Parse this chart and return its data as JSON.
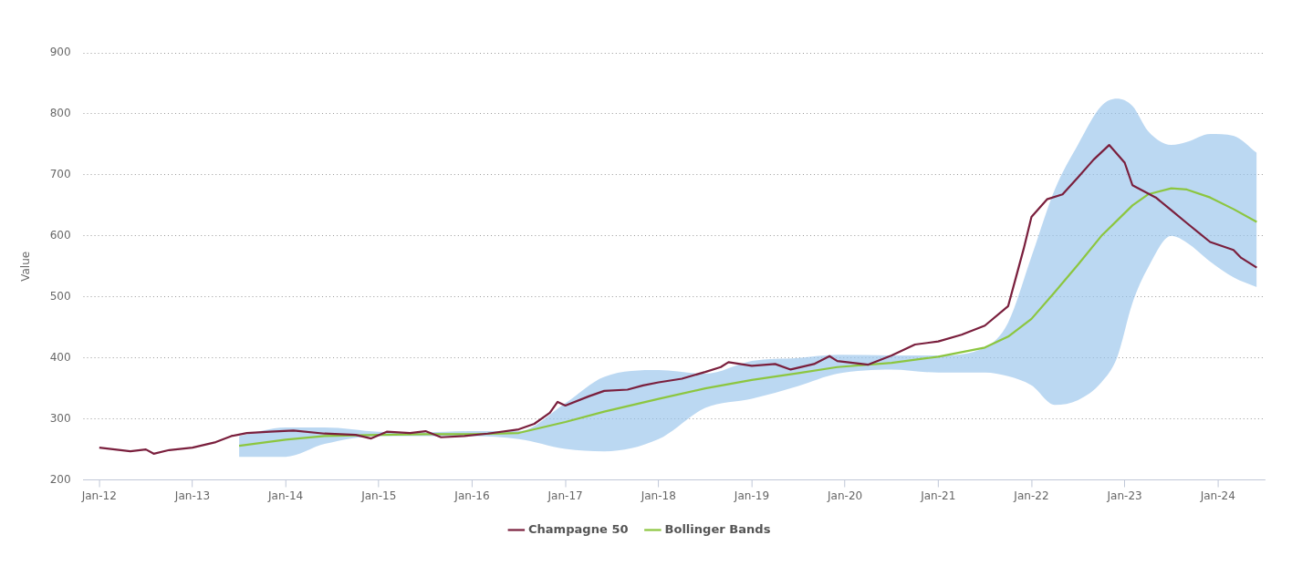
{
  "chart_data": {
    "type": "line",
    "ylabel": "Value",
    "xlim": [
      "2011-11",
      "2024-07"
    ],
    "xticks": [
      {
        "value": "2012-01",
        "label": "Jan-12"
      },
      {
        "value": "2013-01",
        "label": "Jan-13"
      },
      {
        "value": "2014-01",
        "label": "Jan-14"
      },
      {
        "value": "2015-01",
        "label": "Jan-15"
      },
      {
        "value": "2016-01",
        "label": "Jan-16"
      },
      {
        "value": "2017-01",
        "label": "Jan-17"
      },
      {
        "value": "2018-01",
        "label": "Jan-18"
      },
      {
        "value": "2019-01",
        "label": "Jan-19"
      },
      {
        "value": "2020-01",
        "label": "Jan-20"
      },
      {
        "value": "2021-01",
        "label": "Jan-21"
      },
      {
        "value": "2022-01",
        "label": "Jan-22"
      },
      {
        "value": "2023-01",
        "label": "Jan-23"
      },
      {
        "value": "2024-01",
        "label": "Jan-24"
      }
    ],
    "ylim": [
      200,
      900
    ],
    "yticks": [
      200,
      300,
      400,
      500,
      600,
      700,
      800,
      900
    ],
    "grid": "y",
    "legend": "bottom",
    "marker": "none",
    "line_style": "solid",
    "series": [
      {
        "name": "Champagne 50",
        "color": "#7a1f3d",
        "x": [
          "2012-01",
          "2012-03",
          "2012-05",
          "2012-07",
          "2012-08",
          "2012-10",
          "2013-01",
          "2013-04",
          "2013-06",
          "2013-08",
          "2013-11",
          "2014-02",
          "2014-06",
          "2014-10",
          "2014-12",
          "2015-02",
          "2015-05",
          "2015-07",
          "2015-09",
          "2015-12",
          "2016-03",
          "2016-07",
          "2016-09",
          "2016-11",
          "2016-12",
          "2017-01",
          "2017-04",
          "2017-06",
          "2017-09",
          "2017-11",
          "2018-01",
          "2018-04",
          "2018-07",
          "2018-09",
          "2018-10",
          "2019-01",
          "2019-04",
          "2019-06",
          "2019-09",
          "2019-11",
          "2019-12",
          "2020-04",
          "2020-07",
          "2020-10",
          "2021-01",
          "2021-04",
          "2021-07",
          "2021-10",
          "2021-11",
          "2021-12",
          "2022-01",
          "2022-03",
          "2022-05",
          "2022-07",
          "2022-09",
          "2022-11",
          "2023-01",
          "2023-02",
          "2023-05",
          "2023-07",
          "2023-09",
          "2023-12",
          "2024-03",
          "2024-04",
          "2024-06"
        ],
        "values": [
          253,
          250,
          247,
          250,
          243,
          249,
          253,
          262,
          272,
          277,
          279,
          281,
          276,
          274,
          268,
          279,
          277,
          280,
          270,
          272,
          276,
          283,
          292,
          310,
          328,
          322,
          337,
          346,
          348,
          355,
          360,
          366,
          377,
          385,
          393,
          387,
          390,
          381,
          390,
          403,
          395,
          389,
          404,
          422,
          427,
          438,
          453,
          485,
          532,
          579,
          631,
          660,
          668,
          696,
          725,
          749,
          720,
          683,
          663,
          642,
          621,
          590,
          577,
          564,
          548
        ]
      },
      {
        "name": "Bollinger Bands",
        "color": "#8cc63f",
        "x": [
          "2013-07",
          "2014-01",
          "2014-06",
          "2015-01",
          "2015-07",
          "2016-01",
          "2016-07",
          "2017-01",
          "2017-06",
          "2018-01",
          "2018-07",
          "2019-01",
          "2019-07",
          "2019-12",
          "2020-07",
          "2021-01",
          "2021-07",
          "2021-10",
          "2022-01",
          "2022-04",
          "2022-07",
          "2022-10",
          "2022-12",
          "2023-02",
          "2023-04",
          "2023-07",
          "2023-09",
          "2023-12",
          "2024-03",
          "2024-06"
        ],
        "values": [
          256,
          266,
          272,
          274,
          275,
          275,
          277,
          295,
          312,
          333,
          350,
          364,
          375,
          385,
          392,
          402,
          417,
          435,
          464,
          508,
          553,
          600,
          625,
          650,
          668,
          678,
          676,
          663,
          644,
          623
        ],
        "upper": [
          272,
          286,
          286,
          279,
          278,
          280,
          280,
          326,
          369,
          380,
          374,
          395,
          400,
          405,
          404,
          404,
          417,
          458,
          566,
          676,
          750,
          813,
          825,
          813,
          772,
          749,
          754,
          767,
          764,
          736
        ],
        "lower": [
          238,
          238,
          259,
          272,
          272,
          272,
          267,
          251,
          247,
          267,
          318,
          333,
          354,
          374,
          381,
          376,
          376,
          370,
          355,
          323,
          331,
          360,
          400,
          490,
          548,
          600,
          589,
          558,
          532,
          516
        ]
      }
    ]
  }
}
